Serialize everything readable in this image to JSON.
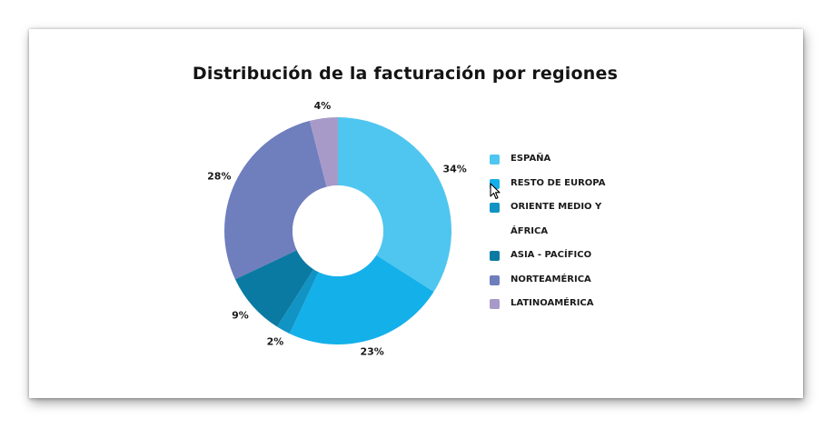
{
  "chart_data": {
    "type": "pie",
    "variant": "donut",
    "title": "Distribución de la facturación por regiones",
    "categories": [
      "ESPAÑA",
      "RESTO DE EUROPA",
      "ORIENTE MEDIO Y ÁFRICA",
      "ASIA - PACÍFICO",
      "NORTEAMÉRICA",
      "LATINOAMÉRICA"
    ],
    "legend_lines": [
      [
        "ESPAÑA"
      ],
      [
        "RESTO DE EUROPA"
      ],
      [
        "ORIENTE MEDIO Y",
        "ÁFRICA"
      ],
      [
        "ASIA - PACÍFICO"
      ],
      [
        "NORTEAMÉRICA"
      ],
      [
        "LATINOAMÉRICA"
      ]
    ],
    "values": [
      34,
      23,
      2,
      9,
      28,
      4
    ],
    "value_labels": [
      "34%",
      "23%",
      "2%",
      "9%",
      "28%",
      "4%"
    ],
    "colors": [
      "#4fc6ef",
      "#14b0ea",
      "#1194c4",
      "#0b7aa2",
      "#6f7ebd",
      "#a89ac8"
    ],
    "legend_position": "right"
  }
}
